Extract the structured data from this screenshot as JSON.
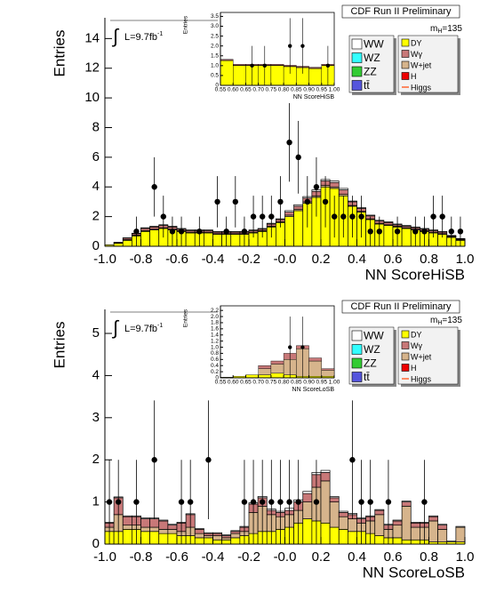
{
  "chart_data": [
    {
      "type": "histogram",
      "title": "CDF Run II Preliminary",
      "xlabel": "NN ScoreHiSB",
      "ylabel": "Entries",
      "lumi_symbol": "∫",
      "lumi": "L=9.7fb",
      "lumi_sup": "-1",
      "mass": "m",
      "mass_sub": "H",
      "mass_value": "=135",
      "bins": [
        -1.0,
        -0.95,
        -0.9,
        -0.85,
        -0.8,
        -0.75,
        -0.7,
        -0.65,
        -0.6,
        -0.55,
        -0.5,
        -0.45,
        -0.4,
        -0.35,
        -0.3,
        -0.25,
        -0.2,
        -0.15,
        -0.1,
        -0.05,
        0.0,
        0.05,
        0.1,
        0.15,
        0.2,
        0.25,
        0.3,
        0.35,
        0.4,
        0.45,
        0.5,
        0.55,
        0.6,
        0.65,
        0.7,
        0.75,
        0.8,
        0.85,
        0.9,
        0.95,
        1.0
      ],
      "xlim": [
        -1.0,
        1.0
      ],
      "ylim": [
        0,
        15.4
      ],
      "xticks": [
        {
          "value": -1.0,
          "label": "-1.0"
        },
        -0.8,
        -0.6,
        -0.4,
        -0.2,
        {
          "value": 0,
          "label": "-0.0"
        },
        0.2,
        0.4,
        0.6,
        0.8,
        {
          "value": 1.0,
          "label": "1.0"
        }
      ],
      "yticks": [
        0,
        2,
        4,
        6,
        8,
        10,
        12,
        14
      ],
      "series": [
        {
          "name": "WW",
          "color": "#ffffff",
          "values": [
            0,
            0,
            0.02,
            0.03,
            0.05,
            0.05,
            0.05,
            0.05,
            0.05,
            0.05,
            0.05,
            0.05,
            0.05,
            0.05,
            0.05,
            0.05,
            0.05,
            0.05,
            0.05,
            0.05,
            0.1,
            0.1,
            0.1,
            0.1,
            0.1,
            0.1,
            0.1,
            0.05,
            0.05,
            0.05,
            0.05,
            0.05,
            0.05,
            0.05,
            0.05,
            0.05,
            0.05,
            0.05,
            0.03,
            0.02
          ]
        },
        {
          "name": "WZ",
          "color": "#33ffff"
        },
        {
          "name": "ZZ",
          "color": "#33cc33"
        },
        {
          "name": "tt̄",
          "color": "#5555dd"
        },
        {
          "name": "DY",
          "color": "#ffff00",
          "values": [
            0.1,
            0.2,
            0.4,
            0.7,
            1.0,
            1.1,
            1.2,
            1.1,
            1.0,
            0.9,
            0.9,
            0.9,
            0.8,
            0.8,
            0.8,
            0.8,
            0.9,
            1.0,
            1.3,
            1.6,
            2.0,
            2.4,
            2.9,
            3.3,
            4.0,
            3.9,
            3.4,
            2.7,
            2.3,
            1.8,
            1.5,
            1.4,
            1.3,
            1.2,
            1.1,
            1.0,
            0.9,
            0.8,
            0.6,
            0.4
          ]
        },
        {
          "name": "Wγ",
          "color": "#c87878",
          "values": [
            0,
            0.05,
            0.1,
            0.1,
            0.15,
            0.15,
            0.15,
            0.15,
            0.1,
            0.1,
            0.1,
            0.1,
            0.1,
            0.1,
            0.1,
            0.1,
            0.1,
            0.1,
            0.15,
            0.15,
            0.2,
            0.2,
            0.25,
            0.3,
            0.3,
            0.3,
            0.3,
            0.25,
            0.2,
            0.2,
            0.15,
            0.15,
            0.1,
            0.1,
            0.1,
            0.1,
            0.1,
            0.1,
            0.05,
            0.05
          ]
        },
        {
          "name": "W+jet",
          "color": "#d6b48c",
          "values": [
            0,
            0.02,
            0.05,
            0.05,
            0.05,
            0.05,
            0.05,
            0.05,
            0.05,
            0.05,
            0.05,
            0.05,
            0.05,
            0.05,
            0.05,
            0.05,
            0.05,
            0.05,
            0.05,
            0.05,
            0.1,
            0.1,
            0.1,
            0.1,
            0.1,
            0.1,
            0.1,
            0.05,
            0.05,
            0.05,
            0.05,
            0.05,
            0.05,
            0.05,
            0.05,
            0.05,
            0.05,
            0.05,
            0.05,
            0.05
          ]
        },
        {
          "name": "H",
          "color": "#ee0000"
        },
        {
          "name": "Higgs",
          "color": "#ff6633"
        }
      ],
      "points": {
        "values": [
          null,
          null,
          null,
          1,
          null,
          4,
          2,
          1,
          1,
          null,
          1,
          null,
          3,
          1,
          3,
          1,
          2,
          2,
          2,
          3,
          7,
          6,
          3,
          4,
          3,
          2,
          2,
          2,
          2,
          1,
          1,
          null,
          1,
          null,
          1,
          1,
          2,
          2,
          1,
          1
        ],
        "errors": [
          null,
          null,
          null,
          1,
          null,
          2,
          1.41,
          1,
          1,
          null,
          1,
          null,
          1.73,
          1,
          1.73,
          1,
          1.41,
          1.41,
          1.41,
          1.73,
          2.65,
          2.45,
          1.73,
          2,
          1.73,
          1.41,
          1.41,
          1.41,
          1.41,
          1,
          1,
          null,
          1,
          null,
          1,
          1,
          1.41,
          1.41,
          1,
          1
        ]
      }
    },
    {
      "type": "histogram",
      "xlabel": "NN ScoreHiSB",
      "ylabel": "Entries",
      "bins": [
        0.55,
        0.6,
        0.65,
        0.7,
        0.75,
        0.8,
        0.85,
        0.9,
        0.95,
        1.0
      ],
      "xlim": [
        0.55,
        1.0
      ],
      "ylim": [
        0,
        3.7
      ],
      "xticks": [
        0.55,
        {
          "value": 0.6,
          "label": "0.60"
        },
        0.65,
        {
          "value": 0.7,
          "label": "0.70"
        },
        0.75,
        {
          "value": 0.8,
          "label": "0.80"
        },
        0.85,
        {
          "value": 0.9,
          "label": "0.90"
        },
        0.95,
        {
          "value": 1.0,
          "label": "1.00"
        }
      ],
      "yticks": [
        0,
        0.5,
        {
          "value": 1,
          "label": "1.0"
        },
        1.5,
        {
          "value": 2,
          "label": "2.0"
        },
        2.5,
        {
          "value": 3,
          "label": "3.0"
        },
        3.5
      ],
      "series": [
        {
          "color": "#ffff00",
          "values": [
            1.25,
            1.0,
            1.0,
            1.0,
            1.0,
            0.95,
            0.9,
            0.85,
            1.0
          ]
        },
        {
          "color": "#d6b48c",
          "values": [
            0.02,
            0.02,
            0.02,
            0.02,
            0.02,
            0.02,
            0.02,
            0.02,
            0.02
          ]
        },
        {
          "color": "#c87878",
          "values": [
            0.05,
            0.05,
            0.05,
            0.05,
            0.05,
            0.05,
            0.05,
            0.05,
            0.05
          ]
        }
      ],
      "points": {
        "values": [
          null,
          null,
          1,
          1,
          null,
          2,
          2,
          null,
          1
        ],
        "errors": [
          null,
          null,
          1,
          1,
          null,
          1.41,
          1.41,
          null,
          1
        ]
      }
    },
    {
      "type": "histogram",
      "title": "CDF Run II Preliminary",
      "xlabel": "NN ScoreLoSB",
      "ylabel": "Entries",
      "lumi_symbol": "∫",
      "lumi": "L=9.7fb",
      "lumi_sup": "-1",
      "mass": "m",
      "mass_sub": "H",
      "mass_value": "=135",
      "bins": [
        -1.0,
        -0.95,
        -0.9,
        -0.85,
        -0.8,
        -0.75,
        -0.7,
        -0.65,
        -0.6,
        -0.55,
        -0.5,
        -0.45,
        -0.4,
        -0.35,
        -0.3,
        -0.25,
        -0.2,
        -0.15,
        -0.1,
        -0.05,
        0.0,
        0.05,
        0.1,
        0.15,
        0.2,
        0.25,
        0.3,
        0.35,
        0.4,
        0.45,
        0.5,
        0.55,
        0.6,
        0.65,
        0.7,
        0.75,
        0.8,
        0.85,
        0.9,
        0.95,
        1.0
      ],
      "xlim": [
        -1.0,
        1.0
      ],
      "ylim": [
        0,
        5.57
      ],
      "xticks": [
        {
          "value": -1.0,
          "label": "-1.0"
        },
        -0.8,
        -0.6,
        -0.4,
        -0.2,
        {
          "value": 0,
          "label": "-0.0"
        },
        0.2,
        0.4,
        0.6,
        0.8,
        {
          "value": 1.0,
          "label": "1.0"
        }
      ],
      "yticks": [
        0,
        1,
        2,
        3,
        4,
        5
      ],
      "series": [
        {
          "name": "WW",
          "color": "#ffffff",
          "values": [
            0.02,
            0.02,
            0.02,
            0.02,
            0.02,
            0.02,
            0.02,
            0.02,
            0.02,
            0.02,
            0.02,
            0.02,
            0.02,
            0.02,
            0.02,
            0.02,
            0.03,
            0.03,
            0.03,
            0.03,
            0.05,
            0.05,
            0.05,
            0.05,
            0.05,
            0.03,
            0.03,
            0.03,
            0.02,
            0.02,
            0.02,
            0.02,
            0.02,
            0.02,
            0.02,
            0.02,
            0.02,
            0.02,
            0.02,
            0.02
          ]
        },
        {
          "name": "WZ",
          "color": "#33ffff"
        },
        {
          "name": "ZZ",
          "color": "#33cc33"
        },
        {
          "name": "tt̄",
          "color": "#5555dd"
        },
        {
          "name": "DY",
          "color": "#ffff00",
          "values": [
            0.3,
            0.3,
            0.35,
            0.35,
            0.3,
            0.3,
            0.25,
            0.25,
            0.2,
            0.2,
            0.15,
            0.15,
            0.1,
            0.1,
            0.15,
            0.2,
            0.25,
            0.3,
            0.3,
            0.35,
            0.4,
            0.5,
            0.6,
            0.55,
            0.5,
            0.4,
            0.35,
            0.3,
            0.3,
            0.25,
            0.2,
            0.15,
            0.15,
            0.1,
            0.1,
            0.1,
            0.05,
            0.05,
            0.05,
            0.05
          ]
        },
        {
          "name": "Wγ",
          "color": "#c87878",
          "values": [
            0.1,
            0.4,
            0.2,
            0.2,
            0.2,
            0.2,
            0.2,
            0.1,
            0.2,
            0.3,
            0.1,
            0.05,
            0.05,
            0.05,
            0.05,
            0.1,
            0.2,
            0.2,
            0.1,
            0.1,
            0.1,
            0.2,
            0.2,
            0.3,
            0.2,
            0.1,
            0.1,
            0.1,
            0.1,
            0.1,
            0.1,
            0.1,
            0.1,
            0.1,
            0.1,
            0.1,
            0.1,
            0.1,
            0,
            0
          ]
        },
        {
          "name": "W+jet",
          "color": "#d6b48c",
          "values": [
            0.1,
            0.4,
            0.1,
            0.1,
            0.1,
            0.1,
            0.1,
            0.1,
            0.1,
            0.2,
            0.1,
            0.05,
            0.1,
            0.05,
            0.1,
            0.1,
            0.5,
            0.6,
            0.4,
            0.3,
            0.3,
            0.3,
            0.4,
            0.8,
            1.0,
            0.6,
            0.3,
            0.3,
            0.2,
            0.3,
            0.5,
            0.2,
            0.3,
            0.8,
            0.3,
            0.3,
            0.5,
            0.3,
            0,
            0.35
          ]
        },
        {
          "name": "H",
          "color": "#ee0000"
        },
        {
          "name": "Higgs",
          "color": "#ff6633"
        }
      ],
      "points": {
        "values": [
          1,
          1,
          null,
          1,
          null,
          2,
          null,
          null,
          1,
          1,
          null,
          2,
          null,
          null,
          null,
          1,
          1,
          1,
          1,
          1,
          1,
          1,
          null,
          1,
          null,
          null,
          null,
          2,
          1,
          1,
          null,
          1,
          null,
          null,
          null,
          1,
          null,
          null,
          null,
          null
        ],
        "errors": [
          1,
          1,
          null,
          1,
          null,
          1.41,
          null,
          null,
          1,
          1,
          null,
          1.41,
          null,
          null,
          null,
          1,
          1,
          1,
          1,
          1,
          1,
          1,
          null,
          1,
          null,
          null,
          null,
          1.41,
          1,
          1,
          null,
          1,
          null,
          null,
          null,
          1,
          null,
          null,
          null,
          null
        ]
      }
    },
    {
      "type": "histogram",
      "xlabel": "NN ScoreLoSB",
      "ylabel": "Entries",
      "bins": [
        0.55,
        0.6,
        0.65,
        0.7,
        0.75,
        0.8,
        0.85,
        0.9,
        0.95,
        1.0
      ],
      "xlim": [
        0.55,
        1.0
      ],
      "ylim": [
        0,
        2.35
      ],
      "xticks": [
        0.55,
        {
          "value": 0.6,
          "label": "0.60"
        },
        0.65,
        {
          "value": 0.7,
          "label": "0.70"
        },
        0.75,
        {
          "value": 0.8,
          "label": "0.80"
        },
        0.85,
        {
          "value": 0.9,
          "label": "0.90"
        },
        0.95,
        {
          "value": 1.0,
          "label": "1.00"
        }
      ],
      "yticks": [
        0,
        0.2,
        0.4,
        0.6,
        0.8,
        {
          "value": 1,
          "label": "1.0"
        },
        1.2,
        1.4,
        1.6,
        1.8,
        {
          "value": 2,
          "label": "2.0"
        },
        2.2
      ],
      "series": [
        {
          "color": "#ffff00",
          "values": [
            0.02,
            0.05,
            0.1,
            0.1,
            0.15,
            0.1,
            0.05,
            0.05,
            0.05
          ]
        },
        {
          "color": "#d6b48c",
          "values": [
            0,
            0,
            0,
            0.2,
            0.3,
            0.5,
            0.9,
            0.5,
            0.2
          ]
        },
        {
          "color": "#c87878",
          "values": [
            0,
            0,
            0,
            0.1,
            0.1,
            0.2,
            0.1,
            0.1,
            0.05
          ]
        }
      ],
      "points": {
        "values": [
          null,
          null,
          null,
          null,
          null,
          1,
          1,
          null,
          null
        ],
        "errors": [
          null,
          null,
          null,
          null,
          null,
          1,
          1,
          null,
          null
        ]
      }
    }
  ]
}
